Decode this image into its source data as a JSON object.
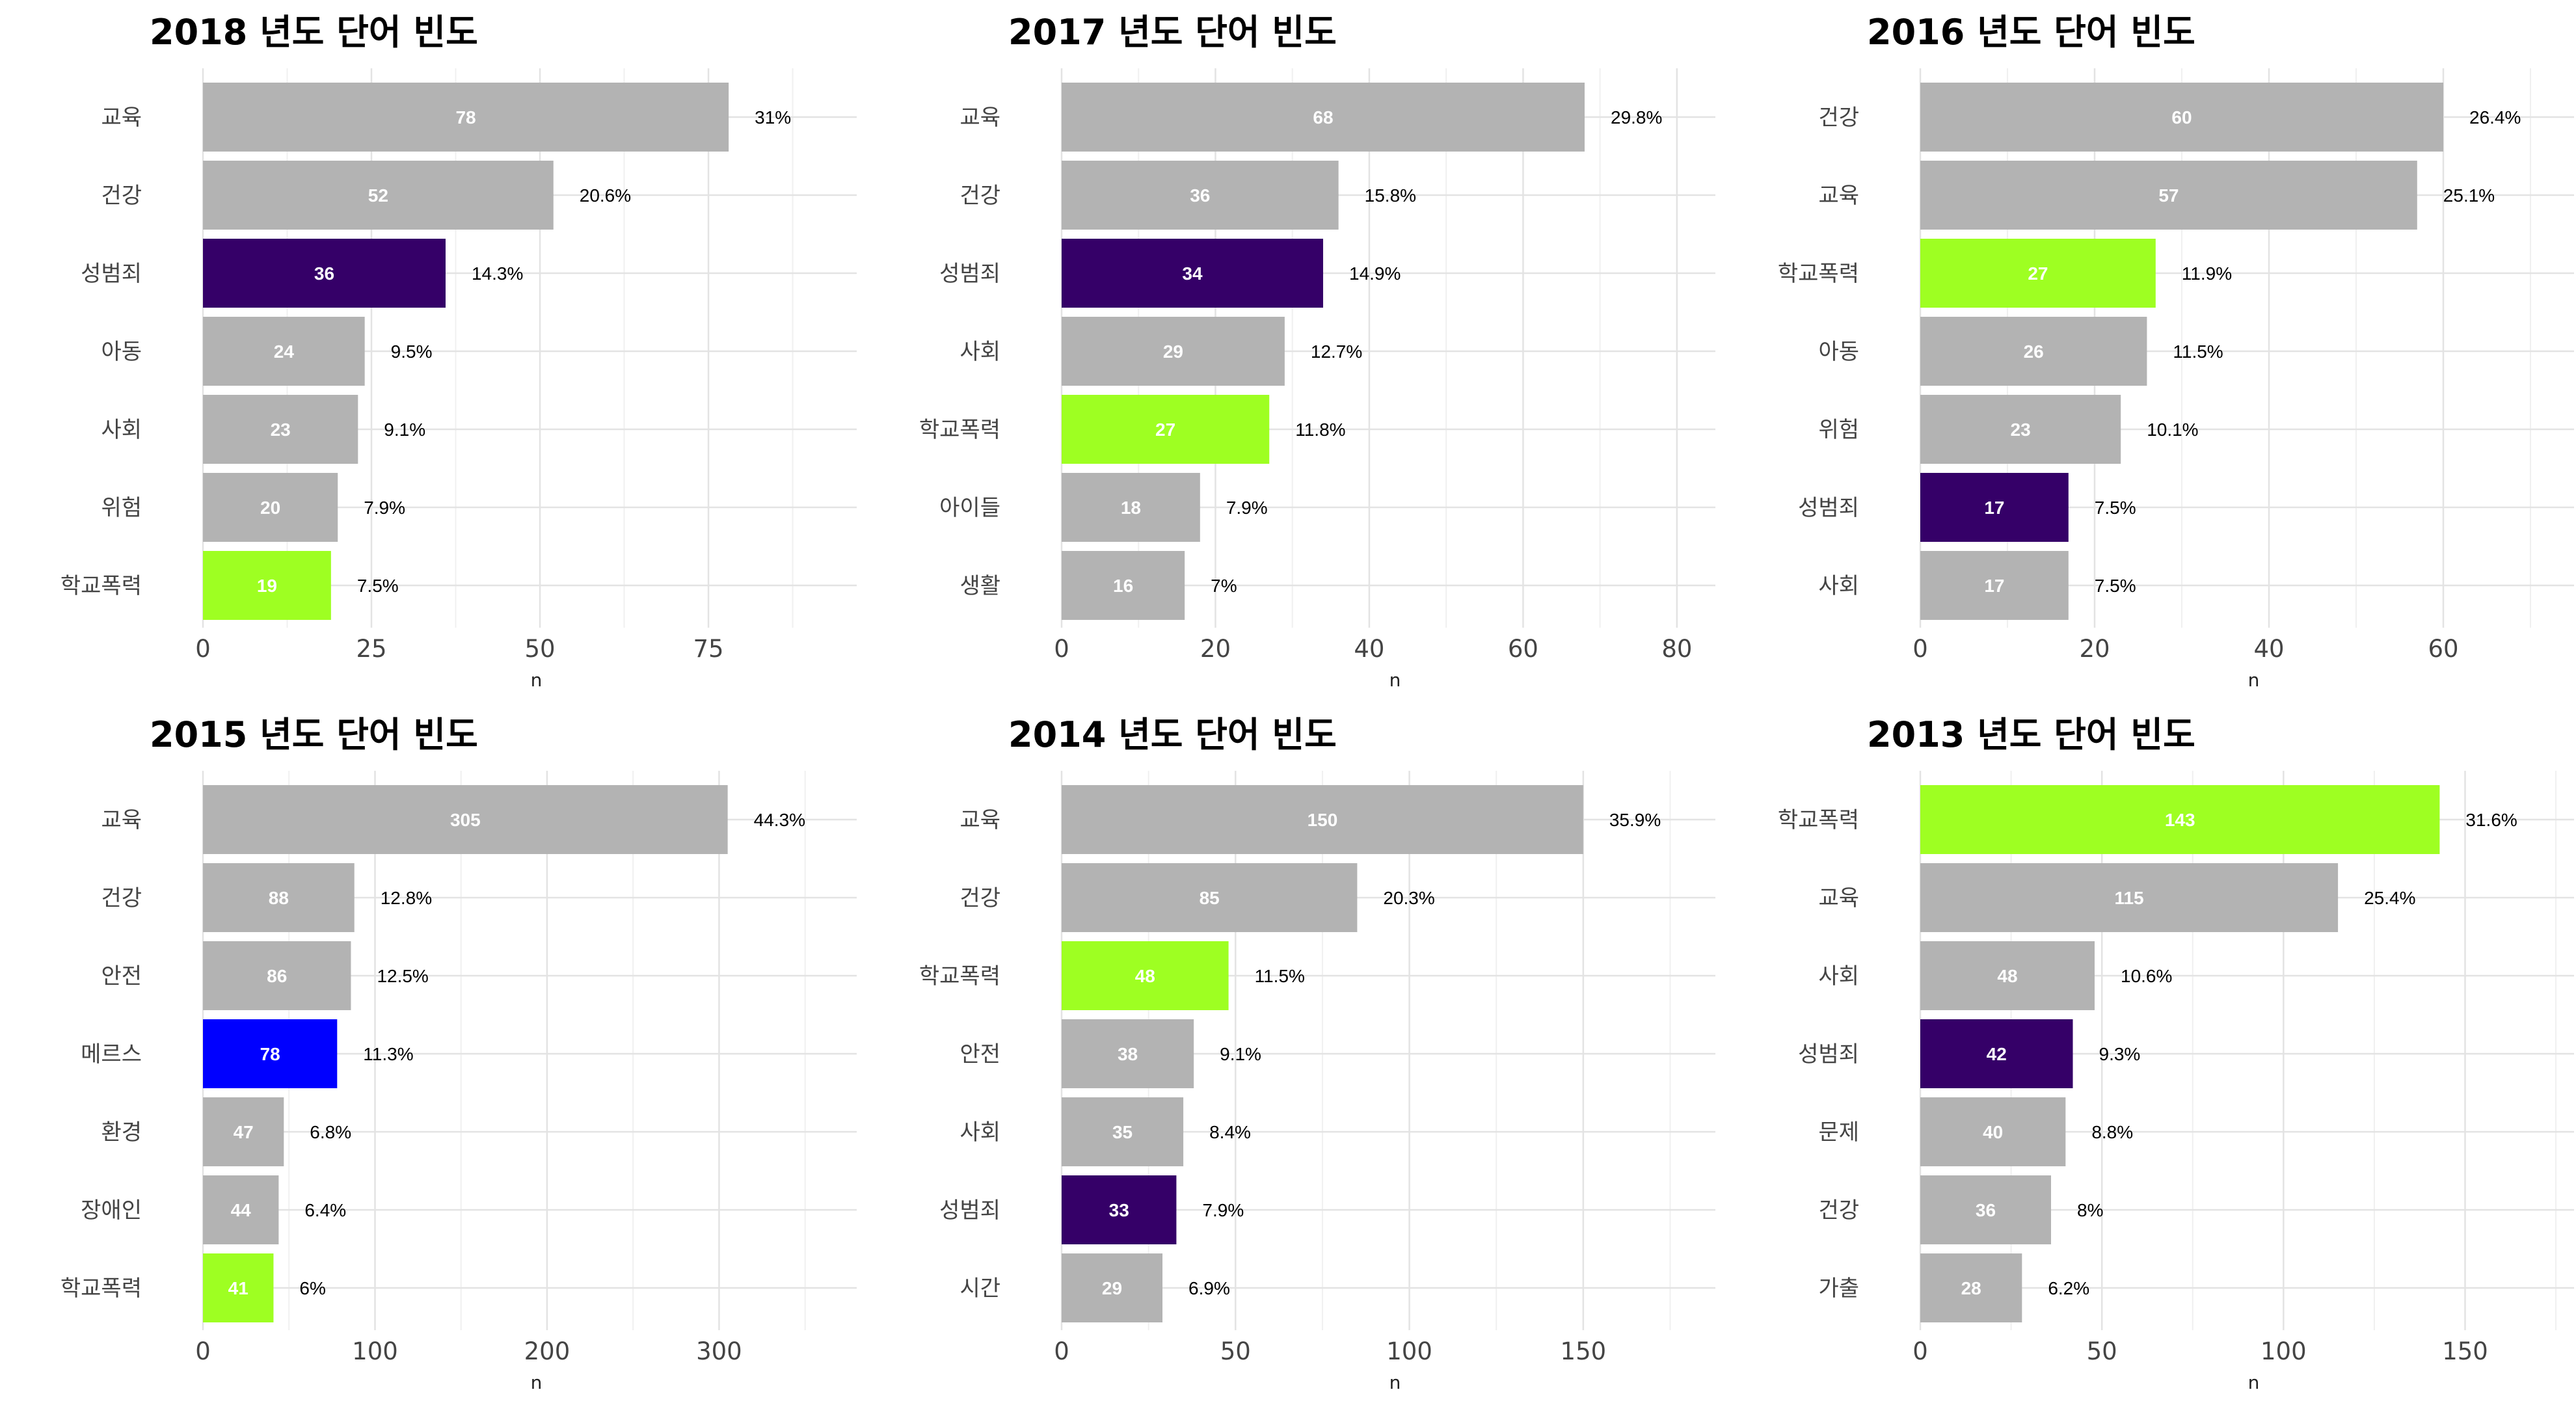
{
  "colors": {
    "default": "#b3b3b3",
    "성범죄": "#350068",
    "학교폭력": "#9eff22",
    "메르스": "#0000ff"
  },
  "chart_data": [
    {
      "type": "bar",
      "orientation": "horizontal",
      "title": "2018 년도 단어 빈도",
      "xlabel": "n",
      "xlim": [
        0,
        97
      ],
      "xticks": [
        0,
        25,
        50,
        75
      ],
      "xtick_labels": [
        "0",
        "25",
        "50",
        "75"
      ],
      "grid": true,
      "categories": [
        "교육",
        "건강",
        "성범죄",
        "아동",
        "사회",
        "위험",
        "학교폭력"
      ],
      "values": [
        78,
        52,
        36,
        24,
        23,
        20,
        19
      ],
      "value_labels": [
        "78",
        "52",
        "36",
        "24",
        "23",
        "20",
        "19"
      ],
      "percent_labels": [
        "31%",
        "20.6%",
        "14.3%",
        "9.5%",
        "9.1%",
        "7.9%",
        "7.5%"
      ]
    },
    {
      "type": "bar",
      "orientation": "horizontal",
      "title": "2017 년도 단어 빈도",
      "xlabel": "n",
      "xlim": [
        0,
        85
      ],
      "xticks": [
        0,
        20,
        40,
        60,
        80
      ],
      "xtick_labels": [
        "0",
        "20",
        "40",
        "60",
        "80"
      ],
      "grid": true,
      "categories": [
        "교육",
        "건강",
        "성범죄",
        "사회",
        "학교폭력",
        "아이들",
        "생활"
      ],
      "values": [
        68,
        36,
        34,
        29,
        27,
        18,
        16
      ],
      "value_labels": [
        "68",
        "36",
        "34",
        "29",
        "27",
        "18",
        "16"
      ],
      "percent_labels": [
        "29.8%",
        "15.8%",
        "14.9%",
        "12.7%",
        "11.8%",
        "7.9%",
        "7%"
      ]
    },
    {
      "type": "bar",
      "orientation": "horizontal",
      "title": "2016 년도 단어 빈도",
      "xlabel": "n",
      "xlim": [
        0,
        75
      ],
      "xticks": [
        0,
        20,
        40,
        60
      ],
      "xtick_labels": [
        "0",
        "20",
        "40",
        "60"
      ],
      "grid": true,
      "categories": [
        "건강",
        "교육",
        "학교폭력",
        "아동",
        "위험",
        "성범죄",
        "사회"
      ],
      "values": [
        60,
        57,
        27,
        26,
        23,
        17,
        17
      ],
      "value_labels": [
        "60",
        "57",
        "27",
        "26",
        "23",
        "17",
        "17"
      ],
      "percent_labels": [
        "26.4%",
        "25.1%",
        "11.9%",
        "11.5%",
        "10.1%",
        "7.5%",
        "7.5%"
      ]
    },
    {
      "type": "bar",
      "orientation": "horizontal",
      "title": "2015 년도 단어 빈도",
      "xlabel": "n",
      "xlim": [
        0,
        380
      ],
      "xticks": [
        0,
        100,
        200,
        300
      ],
      "xtick_labels": [
        "0",
        "100",
        "200",
        "300"
      ],
      "grid": true,
      "categories": [
        "교육",
        "건강",
        "안전",
        "메르스",
        "환경",
        "장애인",
        "학교폭력"
      ],
      "values": [
        305,
        88,
        86,
        78,
        47,
        44,
        41
      ],
      "value_labels": [
        "305",
        "88",
        "86",
        "78",
        "47",
        "44",
        "41"
      ],
      "percent_labels": [
        "44.3%",
        "12.8%",
        "12.5%",
        "11.3%",
        "6.8%",
        "6.4%",
        "6%"
      ]
    },
    {
      "type": "bar",
      "orientation": "horizontal",
      "title": "2014 년도 단어 빈도",
      "xlabel": "n",
      "xlim": [
        0,
        188
      ],
      "xticks": [
        0,
        50,
        100,
        150
      ],
      "xtick_labels": [
        "0",
        "50",
        "100",
        "150"
      ],
      "grid": true,
      "categories": [
        "교육",
        "건강",
        "학교폭력",
        "안전",
        "사회",
        "성범죄",
        "시간"
      ],
      "values": [
        150,
        85,
        48,
        38,
        35,
        33,
        29
      ],
      "value_labels": [
        "150",
        "85",
        "48",
        "38",
        "35",
        "33",
        "29"
      ],
      "percent_labels": [
        "35.9%",
        "20.3%",
        "11.5%",
        "9.1%",
        "8.4%",
        "7.9%",
        "6.9%"
      ]
    },
    {
      "type": "bar",
      "orientation": "horizontal",
      "title": "2013 년도 단어 빈도",
      "xlabel": "n",
      "xlim": [
        0,
        180
      ],
      "xticks": [
        0,
        50,
        100,
        150
      ],
      "xtick_labels": [
        "0",
        "50",
        "100",
        "150"
      ],
      "grid": true,
      "categories": [
        "학교폭력",
        "교육",
        "사회",
        "성범죄",
        "문제",
        "건강",
        "가출"
      ],
      "values": [
        143,
        115,
        48,
        42,
        40,
        36,
        28
      ],
      "value_labels": [
        "143",
        "115",
        "48",
        "42",
        "40",
        "36",
        "28"
      ],
      "percent_labels": [
        "31.6%",
        "25.4%",
        "10.6%",
        "9.3%",
        "8.8%",
        "8%",
        "6.2%"
      ]
    }
  ]
}
